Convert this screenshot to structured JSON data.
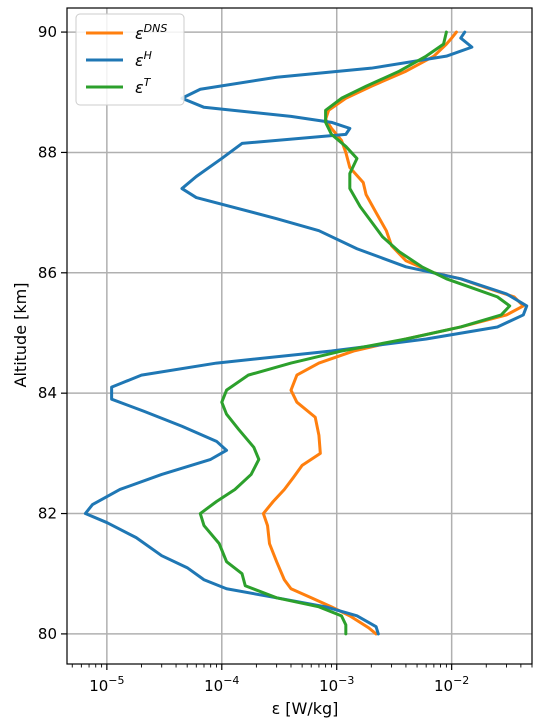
{
  "chart_data": {
    "type": "line",
    "xlabel": "ε [W/kg]",
    "ylabel": "Altitude [km]",
    "x_scale": "log",
    "xlim": [
      4.5e-06,
      0.05
    ],
    "ylim": [
      79.5,
      90.4
    ],
    "grid": true,
    "legend_position": "top-left",
    "x_ticks": [
      {
        "value": 1e-05,
        "base": "10",
        "exp": "−5"
      },
      {
        "value": 0.0001,
        "base": "10",
        "exp": "−4"
      },
      {
        "value": 0.001,
        "base": "10",
        "exp": "−3"
      },
      {
        "value": 0.01,
        "base": "10",
        "exp": "−2"
      }
    ],
    "y_ticks": [
      {
        "value": 80,
        "label": "80"
      },
      {
        "value": 82,
        "label": "82"
      },
      {
        "value": 84,
        "label": "84"
      },
      {
        "value": 86,
        "label": "86"
      },
      {
        "value": 88,
        "label": "88"
      },
      {
        "value": 90,
        "label": "90"
      }
    ],
    "series": [
      {
        "name": "εDNS",
        "symbol": "ε",
        "superscript": "DNS",
        "color": "#ff7f0e",
        "points": [
          [
            0.0022,
            80.0
          ],
          [
            0.0019,
            80.1
          ],
          [
            0.0013,
            80.3
          ],
          [
            0.0009,
            80.45
          ],
          [
            0.0006,
            80.6
          ],
          [
            0.0004,
            80.75
          ],
          [
            0.00035,
            80.9
          ],
          [
            0.0003,
            81.2
          ],
          [
            0.00026,
            81.5
          ],
          [
            0.00025,
            81.8
          ],
          [
            0.00023,
            82.0
          ],
          [
            0.00028,
            82.2
          ],
          [
            0.00035,
            82.4
          ],
          [
            0.00042,
            82.6
          ],
          [
            0.0005,
            82.8
          ],
          [
            0.00072,
            83.0
          ],
          [
            0.0007,
            83.3
          ],
          [
            0.00065,
            83.6
          ],
          [
            0.00045,
            83.85
          ],
          [
            0.0004,
            84.05
          ],
          [
            0.00045,
            84.3
          ],
          [
            0.0007,
            84.5
          ],
          [
            0.0014,
            84.7
          ],
          [
            0.004,
            84.9
          ],
          [
            0.012,
            85.1
          ],
          [
            0.03,
            85.3
          ],
          [
            0.042,
            85.45
          ],
          [
            0.035,
            85.6
          ],
          [
            0.02,
            85.75
          ],
          [
            0.012,
            85.9
          ],
          [
            0.007,
            86.0
          ],
          [
            0.004,
            86.2
          ],
          [
            0.003,
            86.45
          ],
          [
            0.0027,
            86.7
          ],
          [
            0.0022,
            87.0
          ],
          [
            0.0018,
            87.3
          ],
          [
            0.0017,
            87.5
          ],
          [
            0.0013,
            87.75
          ],
          [
            0.0012,
            88.0
          ],
          [
            0.0011,
            88.2
          ],
          [
            0.0009,
            88.4
          ],
          [
            0.0008,
            88.55
          ],
          [
            0.00085,
            88.7
          ],
          [
            0.0012,
            88.9
          ],
          [
            0.002,
            89.1
          ],
          [
            0.004,
            89.35
          ],
          [
            0.007,
            89.6
          ],
          [
            0.009,
            89.8
          ],
          [
            0.01,
            89.9
          ],
          [
            0.011,
            90.0
          ]
        ]
      },
      {
        "name": "εH",
        "symbol": "ε",
        "superscript": "H",
        "color": "#1f77b4",
        "points": [
          [
            0.0023,
            80.0
          ],
          [
            0.0022,
            80.12
          ],
          [
            0.0015,
            80.3
          ],
          [
            0.0008,
            80.45
          ],
          [
            0.0003,
            80.6
          ],
          [
            0.00011,
            80.75
          ],
          [
            7e-05,
            80.9
          ],
          [
            5e-05,
            81.1
          ],
          [
            3e-05,
            81.3
          ],
          [
            1.8e-05,
            81.6
          ],
          [
            1e-05,
            81.85
          ],
          [
            6.5e-06,
            82.0
          ],
          [
            7.5e-06,
            82.15
          ],
          [
            1.3e-05,
            82.4
          ],
          [
            3e-05,
            82.65
          ],
          [
            8e-05,
            82.9
          ],
          [
            0.00011,
            83.05
          ],
          [
            9e-05,
            83.2
          ],
          [
            4.5e-05,
            83.45
          ],
          [
            2.1e-05,
            83.7
          ],
          [
            1.1e-05,
            83.9
          ],
          [
            1.1e-05,
            84.1
          ],
          [
            2e-05,
            84.3
          ],
          [
            9e-05,
            84.5
          ],
          [
            0.0009,
            84.7
          ],
          [
            0.006,
            84.9
          ],
          [
            0.025,
            85.1
          ],
          [
            0.042,
            85.3
          ],
          [
            0.045,
            85.45
          ],
          [
            0.03,
            85.65
          ],
          [
            0.012,
            85.9
          ],
          [
            0.004,
            86.1
          ],
          [
            0.0015,
            86.4
          ],
          [
            0.0007,
            86.7
          ],
          [
            0.0003,
            86.9
          ],
          [
            6e-05,
            87.25
          ],
          [
            4.5e-05,
            87.4
          ],
          [
            6e-05,
            87.6
          ],
          [
            0.0001,
            87.9
          ],
          [
            0.00015,
            88.15
          ],
          [
            0.0012,
            88.3
          ],
          [
            0.0013,
            88.4
          ],
          [
            0.0009,
            88.5
          ],
          [
            0.0004,
            88.6
          ],
          [
            7e-05,
            88.75
          ],
          [
            4.5e-05,
            88.9
          ],
          [
            6.5e-05,
            89.05
          ],
          [
            0.0003,
            89.25
          ],
          [
            0.002,
            89.4
          ],
          [
            0.009,
            89.6
          ],
          [
            0.015,
            89.75
          ],
          [
            0.012,
            89.9
          ],
          [
            0.013,
            90.0
          ]
        ]
      },
      {
        "name": "εT",
        "symbol": "ε",
        "superscript": "T",
        "color": "#2ca02c",
        "points": [
          [
            0.0012,
            80.0
          ],
          [
            0.0012,
            80.15
          ],
          [
            0.0011,
            80.3
          ],
          [
            0.0007,
            80.45
          ],
          [
            0.0003,
            80.6
          ],
          [
            0.00016,
            80.8
          ],
          [
            0.00015,
            81.0
          ],
          [
            0.00011,
            81.2
          ],
          [
            9.5e-05,
            81.5
          ],
          [
            7e-05,
            81.8
          ],
          [
            6.5e-05,
            82.0
          ],
          [
            9e-05,
            82.2
          ],
          [
            0.00013,
            82.4
          ],
          [
            0.00018,
            82.65
          ],
          [
            0.00021,
            82.9
          ],
          [
            0.00019,
            83.1
          ],
          [
            0.00014,
            83.4
          ],
          [
            0.00011,
            83.65
          ],
          [
            0.0001,
            83.85
          ],
          [
            0.00011,
            84.05
          ],
          [
            0.00017,
            84.3
          ],
          [
            0.0004,
            84.5
          ],
          [
            0.0011,
            84.7
          ],
          [
            0.004,
            84.9
          ],
          [
            0.012,
            85.1
          ],
          [
            0.027,
            85.3
          ],
          [
            0.032,
            85.45
          ],
          [
            0.025,
            85.6
          ],
          [
            0.015,
            85.75
          ],
          [
            0.009,
            85.9
          ],
          [
            0.0055,
            86.1
          ],
          [
            0.0035,
            86.35
          ],
          [
            0.0025,
            86.6
          ],
          [
            0.002,
            86.85
          ],
          [
            0.0016,
            87.1
          ],
          [
            0.0013,
            87.4
          ],
          [
            0.0013,
            87.65
          ],
          [
            0.0015,
            87.9
          ],
          [
            0.0012,
            88.1
          ],
          [
            0.0009,
            88.3
          ],
          [
            0.0008,
            88.5
          ],
          [
            0.0008,
            88.7
          ],
          [
            0.0011,
            88.9
          ],
          [
            0.0018,
            89.1
          ],
          [
            0.0035,
            89.35
          ],
          [
            0.006,
            89.6
          ],
          [
            0.0085,
            89.8
          ],
          [
            0.009,
            90.0
          ]
        ]
      }
    ]
  }
}
